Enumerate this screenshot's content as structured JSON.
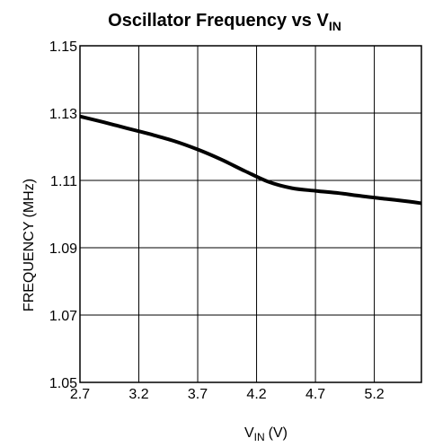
{
  "chart_data": {
    "type": "line",
    "title": "Oscillator Frequency vs V",
    "title_subscript": "IN",
    "xlabel": "V",
    "xlabel_subscript": "IN",
    "xlabel_unit": "(V)",
    "ylabel": "FREQUENCY (MHz)",
    "xlim": [
      2.7,
      5.6
    ],
    "ylim": [
      1.05,
      1.15
    ],
    "grid": true,
    "x_ticks": [
      2.7,
      3.2,
      3.7,
      4.2,
      4.7,
      5.2
    ],
    "x_tick_labels": [
      "2.7",
      "3.2",
      "3.7",
      "4.2",
      "4.7",
      "5.2"
    ],
    "y_ticks": [
      1.05,
      1.07,
      1.09,
      1.11,
      1.13,
      1.15
    ],
    "y_tick_labels": [
      "1.05",
      "1.07",
      "1.09",
      "1.11",
      "1.13",
      "1.15"
    ],
    "series": [
      {
        "x": [
          2.7,
          2.9,
          3.1,
          3.3,
          3.5,
          3.7,
          3.9,
          4.1,
          4.3,
          4.5,
          4.7,
          4.9,
          5.1,
          5.3,
          5.5,
          5.6
        ],
        "y": [
          1.129,
          1.1273,
          1.1255,
          1.1237,
          1.1217,
          1.1192,
          1.1162,
          1.1128,
          1.1096,
          1.1077,
          1.1069,
          1.1062,
          1.1053,
          1.1045,
          1.1037,
          1.1032
        ],
        "color": "#000000"
      }
    ]
  }
}
